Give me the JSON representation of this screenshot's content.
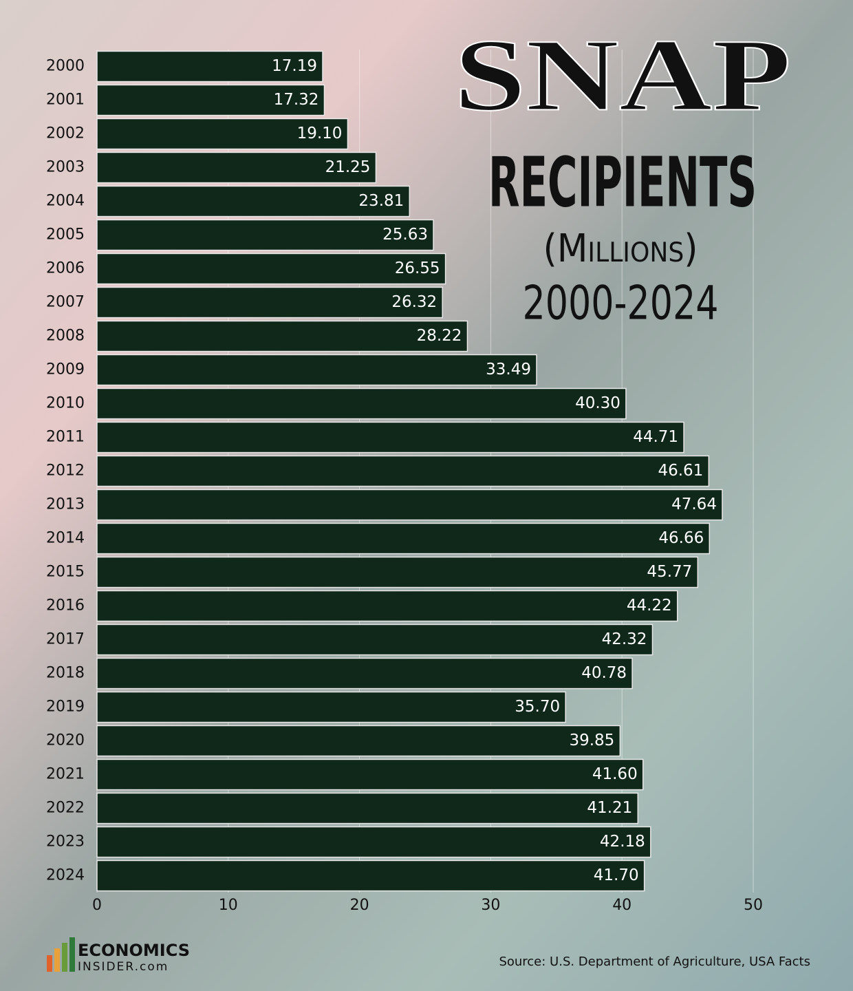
{
  "chart_data": {
    "type": "bar",
    "orientation": "horizontal",
    "title": [
      "SNAP",
      "RECIPIENTS",
      "(Millions)",
      "2000-2024"
    ],
    "categories": [
      "2000",
      "2001",
      "2002",
      "2003",
      "2004",
      "2005",
      "2006",
      "2007",
      "2008",
      "2009",
      "2010",
      "2011",
      "2012",
      "2013",
      "2014",
      "2015",
      "2016",
      "2017",
      "2018",
      "2019",
      "2020",
      "2021",
      "2022",
      "2023",
      "2024"
    ],
    "values": [
      17.19,
      17.32,
      19.1,
      21.25,
      23.81,
      25.63,
      26.55,
      26.32,
      28.22,
      33.49,
      40.3,
      44.71,
      46.61,
      47.64,
      46.66,
      45.77,
      44.22,
      42.32,
      40.78,
      35.7,
      39.85,
      41.6,
      41.21,
      42.18,
      41.7
    ],
    "value_labels": [
      "17.19",
      "17.32",
      "19.10",
      "21.25",
      "23.81",
      "25.63",
      "26.55",
      "26.32",
      "28.22",
      "33.49",
      "40.30",
      "44.71",
      "46.61",
      "47.64",
      "46.66",
      "45.77",
      "44.22",
      "42.32",
      "40.78",
      "35.70",
      "39.85",
      "41.60",
      "41.21",
      "42.18",
      "41.70"
    ],
    "color": "#10281a",
    "xlim": [
      0,
      50
    ],
    "xticks": [
      0,
      10,
      20,
      30,
      40,
      50
    ],
    "grid": true,
    "source": "Source: U.S. Department of Agriculture, USA Facts",
    "brand": [
      "ECONOMICS",
      "INSIDER.com"
    ]
  }
}
